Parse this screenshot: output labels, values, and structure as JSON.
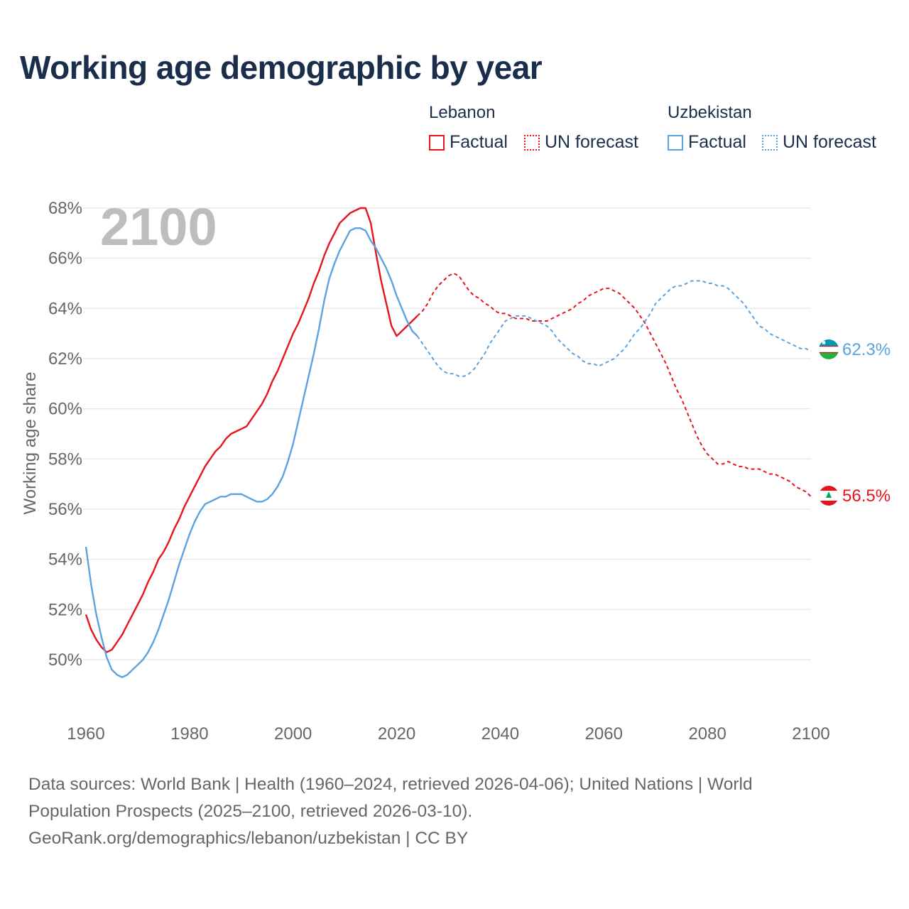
{
  "title": "Working age demographic by year",
  "legend": {
    "lebanon": {
      "name": "Lebanon",
      "factual": "Factual",
      "forecast": "UN forecast"
    },
    "uzbekistan": {
      "name": "Uzbekistan",
      "factual": "Factual",
      "forecast": "UN forecast"
    }
  },
  "footer": {
    "line1": "Data sources: World Bank | Health (1960–2024, retrieved 2026-04-06); United Nations | World",
    "line2": "Population Prospects (2025–2100, retrieved 2026-03-10).",
    "line3": "GeoRank.org/demographics/lebanon/uzbekistan | CC BY"
  },
  "colors": {
    "lebanon": "#e8141c",
    "uzbekistan": "#5ba3e0",
    "text": "#1a2e4c"
  },
  "chart_data": {
    "type": "line",
    "title": "Working age demographic by year",
    "year_label": "2100",
    "ylabel": "Working age share",
    "xlabel": "",
    "xlim": [
      1960,
      2100
    ],
    "ylim": [
      48,
      68.5
    ],
    "x_ticks": [
      1960,
      1980,
      2000,
      2020,
      2040,
      2060,
      2080,
      2100
    ],
    "y_ticks": [
      50,
      52,
      54,
      56,
      58,
      60,
      62,
      64,
      66,
      68
    ],
    "y_tick_labels": [
      "50%",
      "52%",
      "54%",
      "56%",
      "58%",
      "60%",
      "62%",
      "64%",
      "66%",
      "68%"
    ],
    "grid": true,
    "series": [
      {
        "name": "Lebanon",
        "color": "#e8141c",
        "end_label": "56.5%",
        "factual": {
          "x": [
            1960,
            1961,
            1962,
            1963,
            1964,
            1965,
            1966,
            1967,
            1968,
            1969,
            1970,
            1971,
            1972,
            1973,
            1974,
            1975,
            1976,
            1977,
            1978,
            1979,
            1980,
            1981,
            1982,
            1983,
            1984,
            1985,
            1986,
            1987,
            1988,
            1989,
            1990,
            1991,
            1992,
            1993,
            1994,
            1995,
            1996,
            1997,
            1998,
            1999,
            2000,
            2001,
            2002,
            2003,
            2004,
            2005,
            2006,
            2007,
            2008,
            2009,
            2010,
            2011,
            2012,
            2013,
            2014,
            2015,
            2016,
            2017,
            2018,
            2019,
            2020,
            2021,
            2022,
            2023,
            2024
          ],
          "y": [
            51.8,
            51.2,
            50.8,
            50.5,
            50.3,
            50.4,
            50.7,
            51.0,
            51.4,
            51.8,
            52.2,
            52.6,
            53.1,
            53.5,
            54.0,
            54.3,
            54.7,
            55.2,
            55.6,
            56.1,
            56.5,
            56.9,
            57.3,
            57.7,
            58.0,
            58.3,
            58.5,
            58.8,
            59.0,
            59.1,
            59.2,
            59.3,
            59.6,
            59.9,
            60.2,
            60.6,
            61.1,
            61.5,
            62.0,
            62.5,
            63.0,
            63.4,
            63.9,
            64.4,
            65.0,
            65.5,
            66.1,
            66.6,
            67.0,
            67.4,
            67.6,
            67.8,
            67.9,
            68.0,
            68.0,
            67.4,
            66.2,
            65.1,
            64.2,
            63.3,
            62.9,
            63.1,
            63.3,
            63.5,
            63.7
          ]
        },
        "forecast": {
          "x": [
            2024,
            2025,
            2026,
            2027,
            2028,
            2029,
            2030,
            2031,
            2032,
            2033,
            2034,
            2035,
            2036,
            2037,
            2038,
            2039,
            2040,
            2041,
            2042,
            2043,
            2044,
            2045,
            2046,
            2047,
            2048,
            2049,
            2050,
            2051,
            2052,
            2053,
            2054,
            2055,
            2056,
            2057,
            2058,
            2059,
            2060,
            2061,
            2062,
            2063,
            2064,
            2065,
            2066,
            2067,
            2068,
            2069,
            2070,
            2071,
            2072,
            2073,
            2074,
            2075,
            2076,
            2077,
            2078,
            2079,
            2080,
            2081,
            2082,
            2083,
            2084,
            2085,
            2086,
            2087,
            2088,
            2089,
            2090,
            2091,
            2092,
            2093,
            2094,
            2095,
            2096,
            2097,
            2098,
            2099,
            2100
          ],
          "y": [
            63.7,
            63.9,
            64.2,
            64.6,
            64.9,
            65.1,
            65.3,
            65.4,
            65.3,
            65.0,
            64.7,
            64.5,
            64.4,
            64.2,
            64.1,
            63.9,
            63.8,
            63.8,
            63.7,
            63.6,
            63.6,
            63.6,
            63.5,
            63.5,
            63.5,
            63.5,
            63.6,
            63.7,
            63.8,
            63.9,
            64.0,
            64.2,
            64.3,
            64.5,
            64.6,
            64.7,
            64.8,
            64.8,
            64.7,
            64.6,
            64.4,
            64.2,
            64.0,
            63.7,
            63.4,
            63.0,
            62.6,
            62.2,
            61.8,
            61.3,
            60.8,
            60.4,
            59.9,
            59.4,
            58.9,
            58.5,
            58.2,
            58.0,
            57.8,
            57.8,
            57.9,
            57.8,
            57.7,
            57.7,
            57.6,
            57.6,
            57.6,
            57.5,
            57.4,
            57.4,
            57.3,
            57.2,
            57.1,
            56.9,
            56.8,
            56.7,
            56.5
          ]
        }
      },
      {
        "name": "Uzbekistan",
        "color": "#5ba3e0",
        "end_label": "62.3%",
        "factual": {
          "x": [
            1960,
            1961,
            1962,
            1963,
            1964,
            1965,
            1966,
            1967,
            1968,
            1969,
            1970,
            1971,
            1972,
            1973,
            1974,
            1975,
            1976,
            1977,
            1978,
            1979,
            1980,
            1981,
            1982,
            1983,
            1984,
            1985,
            1986,
            1987,
            1988,
            1989,
            1990,
            1991,
            1992,
            1993,
            1994,
            1995,
            1996,
            1997,
            1998,
            1999,
            2000,
            2001,
            2002,
            2003,
            2004,
            2005,
            2006,
            2007,
            2008,
            2009,
            2010,
            2011,
            2012,
            2013,
            2014,
            2015,
            2016,
            2017,
            2018,
            2019,
            2020,
            2021,
            2022,
            2023,
            2024
          ],
          "y": [
            54.5,
            53.0,
            51.8,
            50.9,
            50.1,
            49.6,
            49.4,
            49.3,
            49.4,
            49.6,
            49.8,
            50.0,
            50.3,
            50.7,
            51.2,
            51.8,
            52.4,
            53.1,
            53.8,
            54.4,
            55.0,
            55.5,
            55.9,
            56.2,
            56.3,
            56.4,
            56.5,
            56.5,
            56.6,
            56.6,
            56.6,
            56.5,
            56.4,
            56.3,
            56.3,
            56.4,
            56.6,
            56.9,
            57.3,
            57.9,
            58.6,
            59.5,
            60.4,
            61.3,
            62.2,
            63.2,
            64.3,
            65.2,
            65.8,
            66.3,
            66.7,
            67.1,
            67.2,
            67.2,
            67.1,
            66.7,
            66.4,
            66.0,
            65.6,
            65.1,
            64.5,
            64.0,
            63.5,
            63.1,
            62.9
          ]
        },
        "forecast": {
          "x": [
            2024,
            2025,
            2026,
            2027,
            2028,
            2029,
            2030,
            2031,
            2032,
            2033,
            2034,
            2035,
            2036,
            2037,
            2038,
            2039,
            2040,
            2041,
            2042,
            2043,
            2044,
            2045,
            2046,
            2047,
            2048,
            2049,
            2050,
            2051,
            2052,
            2053,
            2054,
            2055,
            2056,
            2057,
            2058,
            2059,
            2060,
            2061,
            2062,
            2063,
            2064,
            2065,
            2066,
            2067,
            2068,
            2069,
            2070,
            2071,
            2072,
            2073,
            2074,
            2075,
            2076,
            2077,
            2078,
            2079,
            2080,
            2081,
            2082,
            2083,
            2084,
            2085,
            2086,
            2087,
            2088,
            2089,
            2090,
            2091,
            2092,
            2093,
            2094,
            2095,
            2096,
            2097,
            2098,
            2099,
            2100
          ],
          "y": [
            62.9,
            62.6,
            62.3,
            62.0,
            61.7,
            61.5,
            61.4,
            61.4,
            61.3,
            61.3,
            61.4,
            61.6,
            61.9,
            62.2,
            62.6,
            62.9,
            63.2,
            63.5,
            63.6,
            63.7,
            63.7,
            63.7,
            63.6,
            63.5,
            63.4,
            63.3,
            63.1,
            62.8,
            62.6,
            62.4,
            62.2,
            62.1,
            61.9,
            61.8,
            61.8,
            61.7,
            61.8,
            61.9,
            62.0,
            62.2,
            62.4,
            62.7,
            63.0,
            63.2,
            63.5,
            63.8,
            64.2,
            64.4,
            64.6,
            64.8,
            64.9,
            64.9,
            65.0,
            65.1,
            65.1,
            65.1,
            65.0,
            65.0,
            64.9,
            64.9,
            64.8,
            64.6,
            64.4,
            64.2,
            63.9,
            63.6,
            63.3,
            63.2,
            63.0,
            62.9,
            62.8,
            62.7,
            62.6,
            62.5,
            62.4,
            62.4,
            62.3
          ]
        }
      }
    ]
  }
}
